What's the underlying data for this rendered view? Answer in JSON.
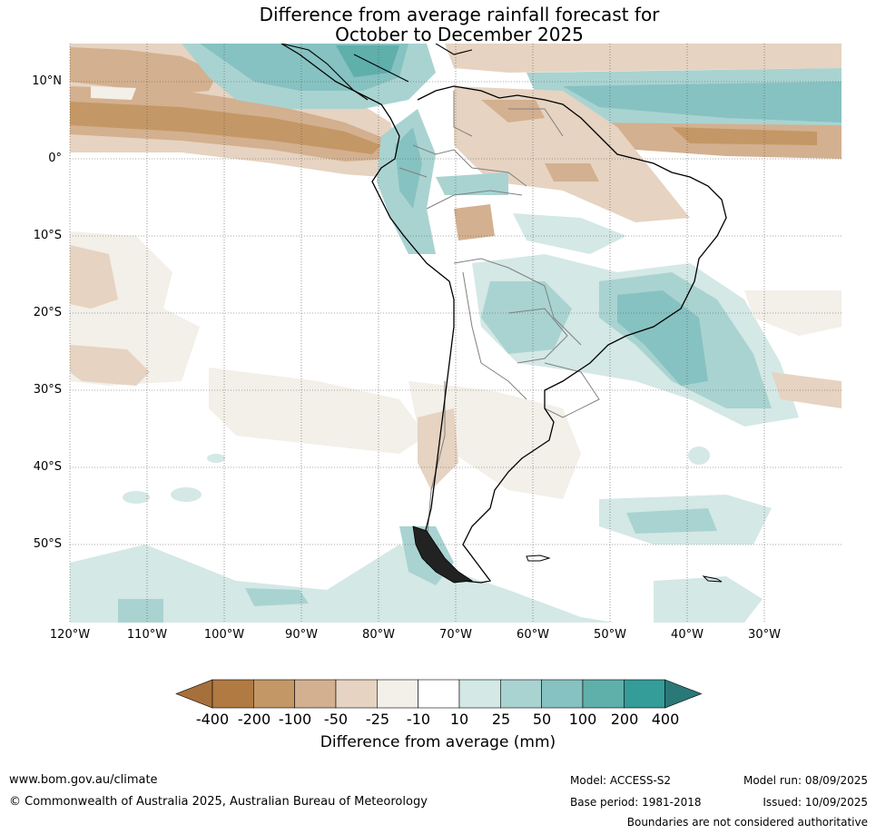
{
  "title_line1": "Difference from average rainfall forecast for",
  "title_line2": "October to December 2025",
  "latitude_labels": [
    "10°N",
    "0°",
    "10°S",
    "20°S",
    "30°S",
    "40°S",
    "50°S"
  ],
  "longitude_labels": [
    "120°W",
    "110°W",
    "100°W",
    "90°W",
    "80°W",
    "70°W",
    "60°W",
    "50°W",
    "40°W",
    "30°W"
  ],
  "colorbar": {
    "label": "Difference from average (mm)",
    "ticks": [
      "-400",
      "-200",
      "-100",
      "-50",
      "-25",
      "-10",
      "10",
      "25",
      "50",
      "100",
      "200",
      "400"
    ],
    "colors": [
      "#a6703c",
      "#b07a42",
      "#c49766",
      "#d3b08f",
      "#e6d3c1",
      "#f3efe9",
      "#ffffff",
      "#d4e8e6",
      "#a9d3d1",
      "#86c2c1",
      "#5fafab",
      "#349c99",
      "#2a7978"
    ]
  },
  "footer": {
    "website": "www.bom.gov.au/climate",
    "copyright": "© Commonwealth of Australia 2025, Australian Bureau of Meteorology",
    "model": "Model: ACCESS-S2",
    "base_period": "Base period: 1981-2018",
    "model_run": "Model run: 08/09/2025",
    "issued": "Issued: 10/09/2025",
    "disclaimer": "Boundaries are not considered authoritative"
  }
}
